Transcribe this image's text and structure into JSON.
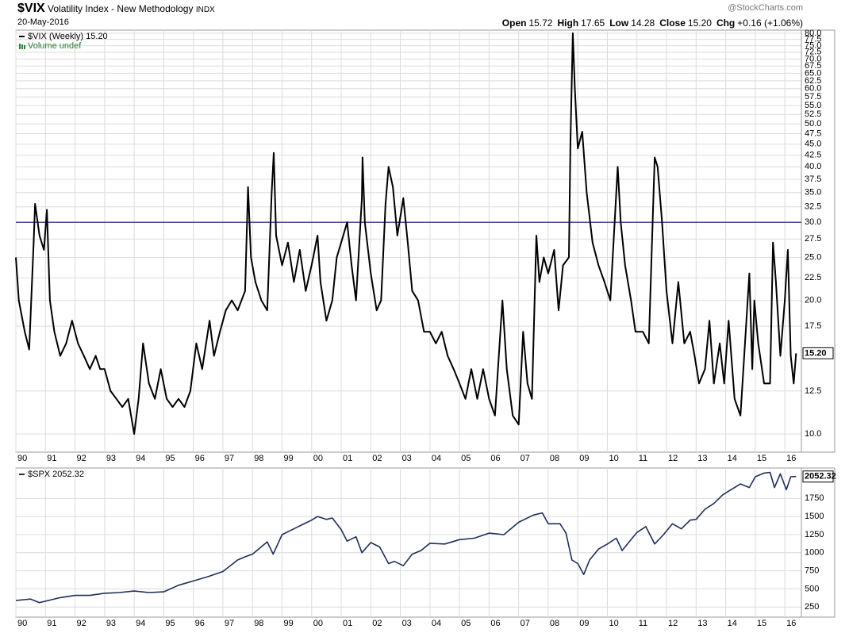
{
  "chart_data": [
    {
      "type": "line",
      "title": "$VIX",
      "subtitle": "Volatility Index - New Methodology",
      "exchange": "INDX",
      "date": "20-May-2016",
      "source": "@StockCharts.com",
      "quote": [
        {
          "label": "Open",
          "value": "15.72"
        },
        {
          "label": "High",
          "value": "17.65"
        },
        {
          "label": "Low",
          "value": "14.28"
        },
        {
          "label": "Close",
          "value": "15.20"
        },
        {
          "label": "Chg",
          "value": "+0.16 (+1.06%)"
        }
      ],
      "volume_label": "Volume undef",
      "log_scale": true,
      "grid": true,
      "hline": 30,
      "hline_color": "#1a1a7a",
      "last_value": {
        "value": 15.2,
        "label": "15.20"
      },
      "x": [
        1990.0,
        1990.1,
        1990.3,
        1990.45,
        1990.6,
        1990.65,
        1990.8,
        1990.95,
        1991.05,
        1991.15,
        1991.3,
        1991.5,
        1991.7,
        1991.9,
        1992.1,
        1992.3,
        1992.5,
        1992.7,
        1992.85,
        1993.0,
        1993.2,
        1993.4,
        1993.6,
        1993.8,
        1994.0,
        1994.15,
        1994.3,
        1994.5,
        1994.7,
        1994.9,
        1995.1,
        1995.3,
        1995.5,
        1995.7,
        1995.9,
        1996.1,
        1996.3,
        1996.55,
        1996.7,
        1996.9,
        1997.1,
        1997.3,
        1997.5,
        1997.75,
        1997.85,
        1997.95,
        1998.1,
        1998.3,
        1998.5,
        1998.65,
        1998.72,
        1998.8,
        1999.0,
        1999.2,
        1999.4,
        1999.6,
        1999.8,
        2000.0,
        2000.2,
        2000.3,
        2000.5,
        2000.7,
        2000.85,
        2001.0,
        2001.2,
        2001.35,
        2001.5,
        2001.7,
        2001.72,
        2001.8,
        2002.0,
        2002.2,
        2002.35,
        2002.5,
        2002.6,
        2002.75,
        2002.9,
        2003.1,
        2003.25,
        2003.4,
        2003.6,
        2003.8,
        2004.0,
        2004.2,
        2004.4,
        2004.6,
        2004.8,
        2005.0,
        2005.2,
        2005.4,
        2005.6,
        2005.8,
        2006.0,
        2006.2,
        2006.45,
        2006.6,
        2006.8,
        2007.0,
        2007.15,
        2007.3,
        2007.45,
        2007.6,
        2007.7,
        2007.85,
        2008.0,
        2008.2,
        2008.35,
        2008.5,
        2008.7,
        2008.75,
        2008.83,
        2008.9,
        2009.0,
        2009.15,
        2009.3,
        2009.5,
        2009.7,
        2009.9,
        2010.1,
        2010.35,
        2010.45,
        2010.6,
        2010.8,
        2010.95,
        2011.2,
        2011.4,
        2011.6,
        2011.7,
        2011.85,
        2012.0,
        2012.2,
        2012.4,
        2012.6,
        2012.8,
        2012.95,
        2013.1,
        2013.3,
        2013.45,
        2013.6,
        2013.8,
        2013.95,
        2014.1,
        2014.3,
        2014.5,
        2014.6,
        2014.8,
        2014.9,
        2014.97,
        2015.1,
        2015.3,
        2015.5,
        2015.6,
        2015.7,
        2015.85,
        2016.0,
        2016.1,
        2016.2,
        2016.3,
        2016.38
      ],
      "series": [
        {
          "name": "$VIX (Weekly) 15.20",
          "color": "#000000",
          "values": [
            25,
            20,
            17,
            15.5,
            27,
            33,
            28,
            26,
            32,
            20,
            17,
            15,
            16,
            18,
            16,
            15,
            14,
            15,
            14,
            14,
            12.5,
            12,
            11.5,
            12,
            10,
            12,
            16,
            13,
            12,
            14,
            12,
            11.5,
            12,
            11.5,
            12.5,
            16,
            14,
            18,
            15,
            17,
            19,
            20,
            19,
            21,
            36,
            25,
            22,
            20,
            19,
            35,
            43,
            28,
            24,
            27,
            22,
            26,
            21,
            24,
            28,
            22,
            18,
            20,
            25,
            27,
            30,
            24,
            20,
            34,
            42,
            30,
            23,
            19,
            20,
            33,
            40,
            36,
            28,
            34,
            27,
            21,
            20,
            17,
            17,
            16,
            17,
            15,
            14,
            13,
            12,
            14,
            12,
            14,
            12,
            11,
            20,
            14,
            11,
            10.5,
            17,
            13,
            12,
            28,
            22,
            25,
            23,
            26,
            19,
            24,
            25,
            45,
            80,
            60,
            44,
            48,
            35,
            27,
            24,
            22,
            20,
            40,
            30,
            24,
            20,
            17,
            17,
            16,
            42,
            40,
            30,
            21,
            16,
            22,
            16,
            17,
            15,
            13,
            14,
            18,
            13,
            16,
            13,
            18,
            12,
            11,
            14,
            23,
            14,
            20,
            16,
            13,
            13,
            27,
            22,
            15,
            20,
            26,
            15,
            13,
            15.2
          ]
        }
      ],
      "xlim": [
        1990,
        2016.56
      ],
      "xticks": [
        {
          "value": 1990,
          "label": "90"
        },
        {
          "value": 1991,
          "label": "91"
        },
        {
          "value": 1992,
          "label": "92"
        },
        {
          "value": 1993,
          "label": "93"
        },
        {
          "value": 1994,
          "label": "94"
        },
        {
          "value": 1995,
          "label": "95"
        },
        {
          "value": 1996,
          "label": "96"
        },
        {
          "value": 1997,
          "label": "97"
        },
        {
          "value": 1998,
          "label": "98"
        },
        {
          "value": 1999,
          "label": "99"
        },
        {
          "value": 2000,
          "label": "00"
        },
        {
          "value": 2001,
          "label": "01"
        },
        {
          "value": 2002,
          "label": "02"
        },
        {
          "value": 2003,
          "label": "03"
        },
        {
          "value": 2004,
          "label": "04"
        },
        {
          "value": 2005,
          "label": "05"
        },
        {
          "value": 2006,
          "label": "06"
        },
        {
          "value": 2007,
          "label": "07"
        },
        {
          "value": 2008,
          "label": "08"
        },
        {
          "value": 2009,
          "label": "09"
        },
        {
          "value": 2010,
          "label": "10"
        },
        {
          "value": 2011,
          "label": "11"
        },
        {
          "value": 2012,
          "label": "12"
        },
        {
          "value": 2013,
          "label": "13"
        },
        {
          "value": 2014,
          "label": "14"
        },
        {
          "value": 2015,
          "label": "15"
        },
        {
          "value": 2016,
          "label": "16"
        }
      ],
      "ylim": [
        9.1,
        81.3
      ],
      "yticks": [
        {
          "value": 10,
          "label": "10.0"
        },
        {
          "value": 12.5,
          "label": "12.5"
        },
        {
          "value": 17.5,
          "label": "17.5"
        },
        {
          "value": 20,
          "label": "20.0"
        },
        {
          "value": 22.5,
          "label": "22.5"
        },
        {
          "value": 25,
          "label": "25.0"
        },
        {
          "value": 27.5,
          "label": "27.5"
        },
        {
          "value": 30,
          "label": "30.0"
        },
        {
          "value": 32.5,
          "label": "32.5"
        },
        {
          "value": 35,
          "label": "35.0"
        },
        {
          "value": 37.5,
          "label": "37.5"
        },
        {
          "value": 40,
          "label": "40.0"
        },
        {
          "value": 42.5,
          "label": "42.5"
        },
        {
          "value": 45,
          "label": "45.0"
        },
        {
          "value": 47.5,
          "label": "47.5"
        },
        {
          "value": 50,
          "label": "50.0"
        },
        {
          "value": 52.5,
          "label": "52.5"
        },
        {
          "value": 55,
          "label": "55.0"
        },
        {
          "value": 57.5,
          "label": "57.5"
        },
        {
          "value": 60,
          "label": "60.0"
        },
        {
          "value": 62.5,
          "label": "62.5"
        },
        {
          "value": 65,
          "label": "65.0"
        },
        {
          "value": 67.5,
          "label": "67.5"
        },
        {
          "value": 70,
          "label": "70.0"
        },
        {
          "value": 72.5,
          "label": "72.5"
        },
        {
          "value": 75,
          "label": "75.0"
        },
        {
          "value": 77.5,
          "label": "77.5"
        },
        {
          "value": 80,
          "label": "80.0"
        }
      ]
    },
    {
      "type": "line",
      "log_scale": false,
      "grid": true,
      "last_value": {
        "value": 2052.32,
        "label": "2052.32"
      },
      "x": [
        1990.0,
        1990.5,
        1990.8,
        1991.0,
        1991.5,
        1992.0,
        1992.5,
        1993.0,
        1993.5,
        1994.0,
        1994.5,
        1995.0,
        1995.5,
        1996.0,
        1996.5,
        1997.0,
        1997.5,
        1997.8,
        1998.0,
        1998.5,
        1998.7,
        1999.0,
        1999.5,
        2000.0,
        2000.2,
        2000.5,
        2000.7,
        2001.0,
        2001.2,
        2001.5,
        2001.7,
        2002.0,
        2002.3,
        2002.6,
        2002.8,
        2003.1,
        2003.4,
        2003.7,
        2004.0,
        2004.5,
        2005.0,
        2005.5,
        2006.0,
        2006.5,
        2007.0,
        2007.5,
        2007.8,
        2008.0,
        2008.4,
        2008.6,
        2008.8,
        2009.0,
        2009.2,
        2009.4,
        2009.7,
        2010.0,
        2010.3,
        2010.5,
        2010.8,
        2011.0,
        2011.3,
        2011.6,
        2011.9,
        2012.2,
        2012.5,
        2012.8,
        2013.0,
        2013.3,
        2013.6,
        2013.9,
        2014.1,
        2014.5,
        2014.8,
        2015.0,
        2015.3,
        2015.5,
        2015.65,
        2015.85,
        2016.05,
        2016.2,
        2016.38
      ],
      "series": [
        {
          "name": "$SPX 2052.32",
          "color": "#1f2f5a",
          "values": [
            340,
            360,
            310,
            330,
            380,
            410,
            410,
            440,
            450,
            470,
            450,
            460,
            550,
            610,
            670,
            740,
            900,
            950,
            980,
            1150,
            980,
            1250,
            1350,
            1450,
            1500,
            1460,
            1480,
            1320,
            1160,
            1220,
            1000,
            1140,
            1080,
            850,
            880,
            820,
            980,
            1030,
            1130,
            1120,
            1180,
            1200,
            1270,
            1250,
            1420,
            1520,
            1550,
            1400,
            1400,
            1270,
            900,
            850,
            700,
            900,
            1050,
            1120,
            1200,
            1030,
            1180,
            1280,
            1360,
            1120,
            1250,
            1400,
            1330,
            1450,
            1460,
            1600,
            1680,
            1800,
            1850,
            1950,
            1900,
            2050,
            2100,
            2110,
            1900,
            2090,
            1870,
            2050,
            2052.32
          ]
        }
      ],
      "xlim": [
        1990,
        2016.56
      ],
      "xticks": [
        {
          "value": 1990,
          "label": "90"
        },
        {
          "value": 1991,
          "label": "91"
        },
        {
          "value": 1992,
          "label": "92"
        },
        {
          "value": 1993,
          "label": "93"
        },
        {
          "value": 1994,
          "label": "94"
        },
        {
          "value": 1995,
          "label": "95"
        },
        {
          "value": 1996,
          "label": "96"
        },
        {
          "value": 1997,
          "label": "97"
        },
        {
          "value": 1998,
          "label": "98"
        },
        {
          "value": 1999,
          "label": "99"
        },
        {
          "value": 2000,
          "label": "00"
        },
        {
          "value": 2001,
          "label": "01"
        },
        {
          "value": 2002,
          "label": "02"
        },
        {
          "value": 2003,
          "label": "03"
        },
        {
          "value": 2004,
          "label": "04"
        },
        {
          "value": 2005,
          "label": "05"
        },
        {
          "value": 2006,
          "label": "06"
        },
        {
          "value": 2007,
          "label": "07"
        },
        {
          "value": 2008,
          "label": "08"
        },
        {
          "value": 2009,
          "label": "09"
        },
        {
          "value": 2010,
          "label": "10"
        },
        {
          "value": 2011,
          "label": "11"
        },
        {
          "value": 2012,
          "label": "12"
        },
        {
          "value": 2013,
          "label": "13"
        },
        {
          "value": 2014,
          "label": "14"
        },
        {
          "value": 2015,
          "label": "15"
        },
        {
          "value": 2016,
          "label": "16"
        }
      ],
      "ylim": [
        110,
        2170
      ],
      "yticks": [
        250,
        500,
        750,
        1000,
        1250,
        1500,
        1750
      ]
    }
  ]
}
